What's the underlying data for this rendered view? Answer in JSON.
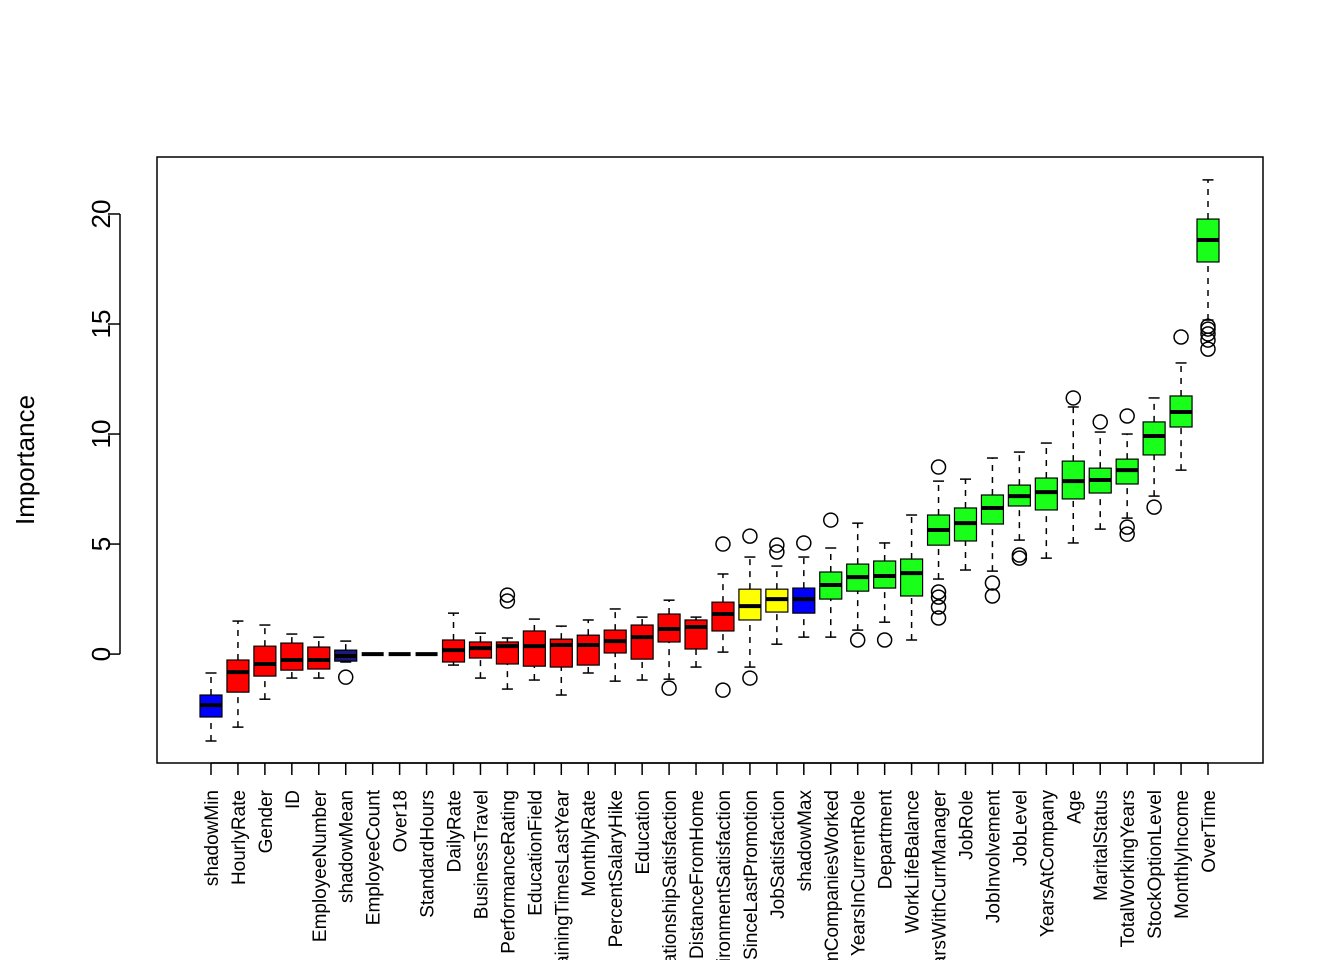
{
  "chart_data": {
    "type": "box",
    "y_label": "Importance",
    "categories": [
      "shadowMin",
      "HourlyRate",
      "Gender",
      "ID",
      "EmployeeNumber",
      "shadowMean",
      "EmployeeCount",
      "Over18",
      "StandardHours",
      "DailyRate",
      "BusinessTravel",
      "PerformanceRating",
      "EducationField",
      "TrainingTimesLastYear",
      "MonthlyRate",
      "PercentSalaryHike",
      "Education",
      "RelationshipSatisfaction",
      "DistanceFromHome",
      "EnvironmentSatisfaction",
      "YearsSinceLastPromotion",
      "JobSatisfaction",
      "shadowMax",
      "NumCompaniesWorked",
      "YearsInCurrentRole",
      "Department",
      "WorkLifeBalance",
      "YearsWithCurrManager",
      "JobRole",
      "JobInvolvement",
      "JobLevel",
      "YearsAtCompany",
      "Age",
      "MaritalStatus",
      "TotalWorkingYears",
      "StockOptionLevel",
      "MonthlyIncome",
      "OverTime"
    ],
    "whisker_low": [
      -3.95,
      -3.32,
      -2.05,
      -1.09,
      -1.09,
      -0.36,
      0,
      0,
      0,
      -0.5,
      -1.09,
      -1.59,
      -1.18,
      -1.86,
      -0.86,
      -1.23,
      -1.18,
      -1.14,
      -0.59,
      0.09,
      -0.59,
      0.45,
      0.77,
      0.77,
      1.09,
      1.45,
      0.64,
      3.41,
      3.82,
      3.77,
      5.18,
      4.36,
      5.05,
      5.68,
      6.18,
      7.18,
      8.36,
      15.18
    ],
    "q1": [
      -2.86,
      -1.73,
      -1.0,
      -0.73,
      -0.68,
      -0.32,
      0,
      0,
      0,
      -0.36,
      -0.18,
      -0.45,
      -0.55,
      -0.59,
      -0.5,
      0.05,
      -0.23,
      0.55,
      0.23,
      1.05,
      1.55,
      1.91,
      1.86,
      2.5,
      2.86,
      3.0,
      2.64,
      4.95,
      5.14,
      5.91,
      6.73,
      6.55,
      7.05,
      7.32,
      7.73,
      9.05,
      10.32,
      17.82
    ],
    "median": [
      -2.32,
      -0.82,
      -0.45,
      -0.27,
      -0.27,
      -0.09,
      0,
      0,
      0,
      0.18,
      0.27,
      0.36,
      0.36,
      0.41,
      0.41,
      0.59,
      0.77,
      1.14,
      1.23,
      1.82,
      2.18,
      2.5,
      2.5,
      3.14,
      3.5,
      3.55,
      3.68,
      5.64,
      5.95,
      6.64,
      7.18,
      7.36,
      7.86,
      7.91,
      8.36,
      9.91,
      11.0,
      18.82
    ],
    "q3": [
      -1.86,
      -0.27,
      0.36,
      0.5,
      0.32,
      0.18,
      0,
      0,
      0,
      0.64,
      0.55,
      0.55,
      1.05,
      0.68,
      0.86,
      1.09,
      1.32,
      1.82,
      1.55,
      2.36,
      2.95,
      2.95,
      3.0,
      3.73,
      4.09,
      4.23,
      4.32,
      6.32,
      6.64,
      7.23,
      7.68,
      8.0,
      8.77,
      8.45,
      8.86,
      10.55,
      11.73,
      19.77
    ],
    "whisker_high": [
      -0.86,
      1.5,
      1.32,
      0.91,
      0.77,
      0.59,
      0,
      0,
      0,
      1.86,
      0.95,
      0.73,
      1.59,
      1.27,
      1.55,
      2.05,
      1.68,
      2.45,
      1.68,
      3.64,
      4.41,
      4.0,
      4.41,
      4.82,
      5.95,
      5.05,
      6.32,
      7.86,
      7.95,
      8.91,
      9.18,
      9.59,
      11.23,
      10.09,
      10.0,
      11.64,
      13.23,
      21.55
    ],
    "outliers": [
      [],
      [],
      [],
      [],
      [],
      [
        -1.05
      ],
      [],
      [],
      [],
      [],
      [],
      [
        2.68,
        2.41
      ],
      [],
      [],
      [],
      [],
      [],
      [
        -1.55
      ],
      [],
      [
        -1.64,
        5.0
      ],
      [
        -1.09,
        5.36
      ],
      [
        4.64,
        4.95
      ],
      [
        5.05
      ],
      [
        6.09
      ],
      [
        0.64
      ],
      [
        0.64
      ],
      [],
      [
        8.5,
        2.82,
        2.59,
        2.14,
        1.64
      ],
      [],
      [
        3.23,
        2.64
      ],
      [
        4.5,
        4.36
      ],
      [],
      [
        11.64
      ],
      [
        10.55
      ],
      [
        10.82,
        5.77,
        5.45
      ],
      [
        6.68
      ],
      [
        14.41
      ],
      [
        14.77,
        14.55,
        14.27,
        13.86,
        14.9
      ]
    ],
    "colors": [
      "#0000ff",
      "#ff0000",
      "#ff0000",
      "#ff0000",
      "#ff0000",
      "#1a1a80",
      "#ff0000",
      "#ff0000",
      "#ff0000",
      "#ff0000",
      "#ff0000",
      "#ff0000",
      "#ff0000",
      "#ff0000",
      "#ff0000",
      "#ff0000",
      "#ff0000",
      "#ff0000",
      "#ff0000",
      "#ff0000",
      "#ffff00",
      "#ffff00",
      "#0000ff",
      "#1aff1a",
      "#1aff1a",
      "#1aff1a",
      "#1aff1a",
      "#1aff1a",
      "#1aff1a",
      "#1aff1a",
      "#1aff1a",
      "#1aff1a",
      "#1aff1a",
      "#1aff1a",
      "#1aff1a",
      "#1aff1a",
      "#1aff1a",
      "#1aff1a"
    ],
    "ylim": [
      -4.95,
      22.59
    ],
    "yticks": [
      0,
      5,
      10,
      15,
      20
    ]
  }
}
